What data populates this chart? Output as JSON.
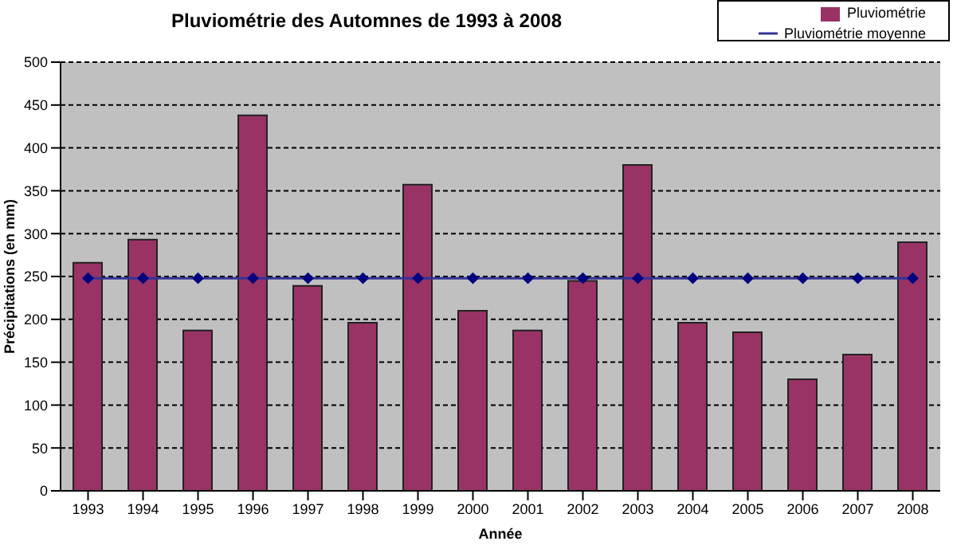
{
  "chart_data": {
    "type": "bar",
    "title": "Pluviométrie des Automnes de 1993 à 2008",
    "xlabel": "Année",
    "ylabel": "Précipitations (en mm)",
    "categories": [
      "1993",
      "1994",
      "1995",
      "1996",
      "1997",
      "1998",
      "1999",
      "2000",
      "2001",
      "2002",
      "2003",
      "2004",
      "2005",
      "2006",
      "2007",
      "2008"
    ],
    "series": [
      {
        "name": "Pluviométrie",
        "color": "#993366",
        "values": [
          266,
          293,
          187,
          438,
          239,
          196,
          357,
          210,
          187,
          245,
          380,
          196,
          185,
          130,
          159,
          290
        ]
      },
      {
        "name": "Pluviométrie moyenne",
        "type": "line",
        "color": "#333399",
        "marker": "diamond",
        "values": [
          248,
          248,
          248,
          248,
          248,
          248,
          248,
          248,
          248,
          248,
          248,
          248,
          248,
          248,
          248,
          248
        ]
      }
    ],
    "ylim": [
      0,
      500
    ],
    "yticks": [
      0,
      50,
      100,
      150,
      200,
      250,
      300,
      350,
      400,
      450,
      500
    ],
    "grid": "y",
    "legend": "top right"
  }
}
